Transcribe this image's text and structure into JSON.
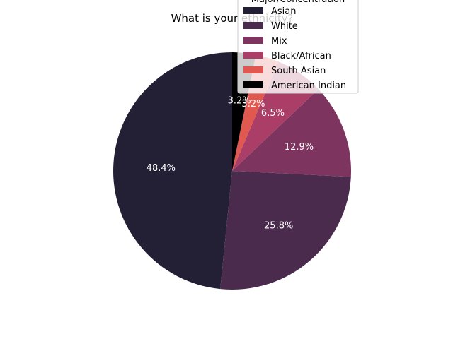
{
  "chart_data": {
    "type": "pie",
    "title": "What is your ethnicity?",
    "labels": [
      "Asian",
      "White",
      "Mix",
      "Black/African",
      "South Asian",
      "American Indian"
    ],
    "values": [
      48.4,
      25.8,
      12.9,
      6.5,
      3.2,
      3.2
    ],
    "value_labels": [
      "48.4%",
      "25.8%",
      "12.9%",
      "6.5%",
      "3.2%",
      "3.2%"
    ],
    "colors": [
      "#231f34",
      "#4a2b4e",
      "#7d3560",
      "#ab3e66",
      "#e0584f",
      "#000000"
    ],
    "legend": {
      "title": "Major/Concentration",
      "placement": "top-right, partly clipped above the figure",
      "entries": [
        "Asian",
        "White",
        "Mix",
        "Black/African",
        "South Asian",
        "American Indian"
      ]
    }
  }
}
